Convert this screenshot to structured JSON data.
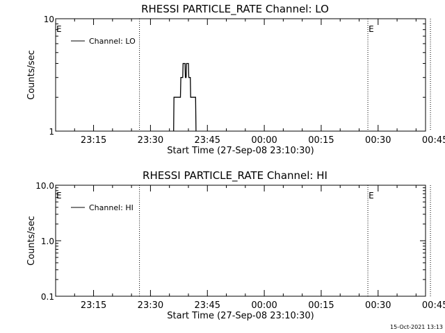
{
  "footer_timestamp": "15-Oct-2021 13:13",
  "chart_data": [
    {
      "type": "line",
      "title": "RHESSI PARTICLE_RATE Channel: LO",
      "xlabel": "Start Time (27-Sep-08 23:10:30)",
      "ylabel": "Counts/sec",
      "y_scale": "log",
      "ylim": [
        1,
        10
      ],
      "y_ticks": [
        {
          "value": 1,
          "label": "1"
        },
        {
          "value": 10,
          "label": "10"
        }
      ],
      "xlim_minutes": [
        -5.5,
        92
      ],
      "x_ticks": [
        {
          "minute": 4.5,
          "label": "23:15"
        },
        {
          "minute": 19.5,
          "label": "23:30"
        },
        {
          "minute": 34.5,
          "label": "23:45"
        },
        {
          "minute": 49.5,
          "label": "00:00"
        },
        {
          "minute": 64.5,
          "label": "00:15"
        },
        {
          "minute": 79.5,
          "label": "00:30"
        },
        {
          "minute": 94.5,
          "label": "00:45"
        }
      ],
      "event_lines_minutes": [
        16.6,
        76.8,
        93.3
      ],
      "event_markers": [
        {
          "minute": -5.5,
          "label": "E"
        },
        {
          "minute": 76.8,
          "label": "E"
        }
      ],
      "grid": false,
      "legend_position": "top-left",
      "series": [
        {
          "name": "Channel: LO",
          "color": "#000000",
          "step": true,
          "points": [
            [
              25.6,
              1
            ],
            [
              25.7,
              2
            ],
            [
              27.4,
              2
            ],
            [
              27.5,
              3
            ],
            [
              28.0,
              3
            ],
            [
              28.1,
              4
            ],
            [
              28.6,
              4
            ],
            [
              28.7,
              3
            ],
            [
              28.9,
              3
            ],
            [
              29.0,
              4
            ],
            [
              29.5,
              4
            ],
            [
              29.6,
              3
            ],
            [
              30.0,
              3
            ],
            [
              30.1,
              2
            ],
            [
              31.4,
              2
            ],
            [
              31.5,
              1
            ]
          ]
        }
      ]
    },
    {
      "type": "line",
      "title": "RHESSI PARTICLE_RATE Channel: HI",
      "xlabel": "Start Time (27-Sep-08 23:10:30)",
      "ylabel": "Counts/sec",
      "y_scale": "log",
      "ylim": [
        0.1,
        10
      ],
      "y_ticks": [
        {
          "value": 0.1,
          "label": "0.1"
        },
        {
          "value": 1,
          "label": "1.0"
        },
        {
          "value": 10,
          "label": "10.0"
        }
      ],
      "xlim_minutes": [
        -5.5,
        92
      ],
      "x_ticks": [
        {
          "minute": 4.5,
          "label": "23:15"
        },
        {
          "minute": 19.5,
          "label": "23:30"
        },
        {
          "minute": 34.5,
          "label": "23:45"
        },
        {
          "minute": 49.5,
          "label": "00:00"
        },
        {
          "minute": 64.5,
          "label": "00:15"
        },
        {
          "minute": 79.5,
          "label": "00:30"
        },
        {
          "minute": 94.5,
          "label": "00:45"
        }
      ],
      "event_lines_minutes": [
        16.6,
        76.8,
        93.3
      ],
      "event_markers": [
        {
          "minute": -5.5,
          "label": "E"
        },
        {
          "minute": 76.8,
          "label": "E"
        }
      ],
      "grid": false,
      "legend_position": "top-left",
      "series": [
        {
          "name": "Channel: HI",
          "color": "#000000",
          "step": true,
          "points": []
        }
      ]
    }
  ]
}
